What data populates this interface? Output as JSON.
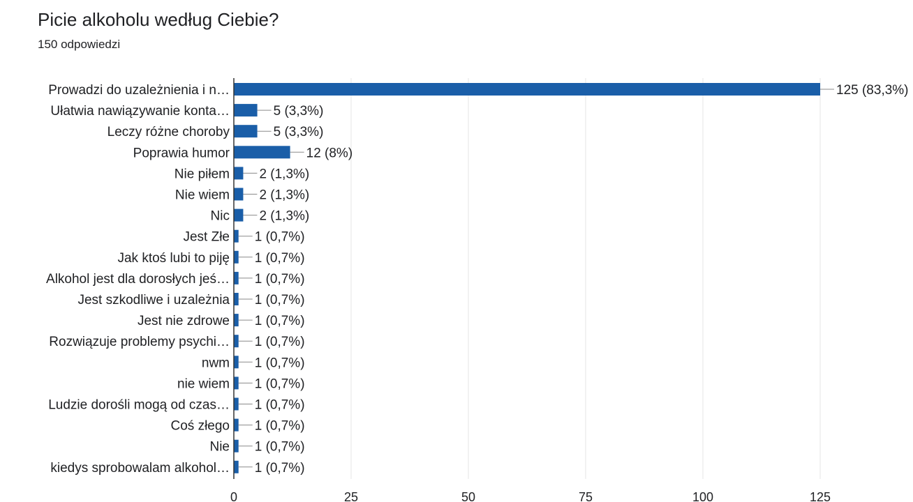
{
  "header": {
    "title": "Picie alkoholu według Ciebie?",
    "responses": "150 odpowiedzi"
  },
  "chart_data": {
    "type": "bar",
    "orientation": "horizontal",
    "categories": [
      "Prowadzi do uzależnienia i n…",
      "Ułatwia nawiązywanie konta…",
      "Leczy różne choroby",
      "Poprawia humor",
      "Nie piłem",
      "Nie wiem",
      "Nic",
      "Jest Złe",
      "Jak ktoś lubi to piję",
      "Alkohol jest dla dorosłych jeś…",
      "Jest szkodliwe i uzależnia",
      "Jest nie zdrowe",
      "Rozwiązuje problemy psychi…",
      "nwm",
      "nie wiem",
      "Ludzie dorośli mogą od czas…",
      "Coś złego",
      "Nie",
      "kiedys sprobowalam alkohol…"
    ],
    "values": [
      125,
      5,
      5,
      12,
      2,
      2,
      2,
      1,
      1,
      1,
      1,
      1,
      1,
      1,
      1,
      1,
      1,
      1,
      1
    ],
    "data_labels": [
      "125 (83,3%)",
      "5 (3,3%)",
      "5 (3,3%)",
      "12 (8%)",
      "2 (1,3%)",
      "2 (1,3%)",
      "2 (1,3%)",
      "1 (0,7%)",
      "1 (0,7%)",
      "1 (0,7%)",
      "1 (0,7%)",
      "1 (0,7%)",
      "1 (0,7%)",
      "1 (0,7%)",
      "1 (0,7%)",
      "1 (0,7%)",
      "1 (0,7%)",
      "1 (0,7%)",
      "1 (0,7%)"
    ],
    "x_ticks": [
      0,
      25,
      50,
      75,
      100,
      125
    ],
    "xlim": [
      0,
      125
    ],
    "grid": true,
    "colors": {
      "bar": "#1a5ea8",
      "grid": "#e6e6e6",
      "axis": "#333333",
      "leader": "#8a8a8a",
      "text": "#202124"
    }
  }
}
